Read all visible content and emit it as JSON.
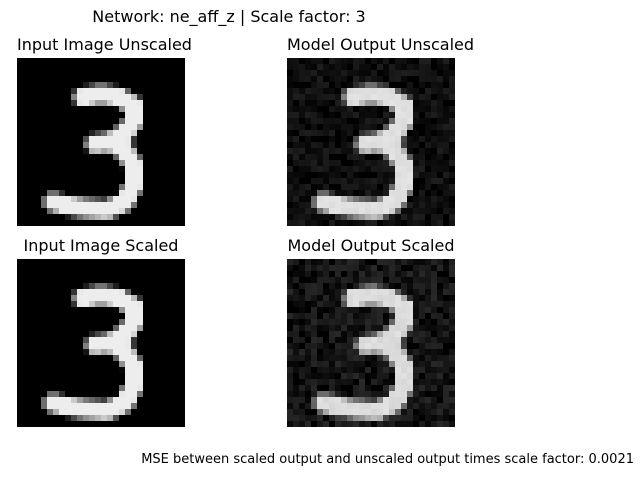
{
  "suptitle": "Network: ne_aff_z | Scale factor: 3",
  "panels": [
    {
      "title": "Input Image Unscaled",
      "brightness": 0.93,
      "noise": 0.0
    },
    {
      "title": "Model Output Unscaled",
      "brightness": 0.86,
      "noise": 0.12
    },
    {
      "title": "Input Image Scaled",
      "brightness": 0.93,
      "noise": 0.0
    },
    {
      "title": "Model Output Scaled",
      "brightness": 0.84,
      "noise": 0.16
    }
  ],
  "caption": {
    "label": "MSE between scaled output and unscaled output times scale factor:",
    "value": "0.0021"
  }
}
